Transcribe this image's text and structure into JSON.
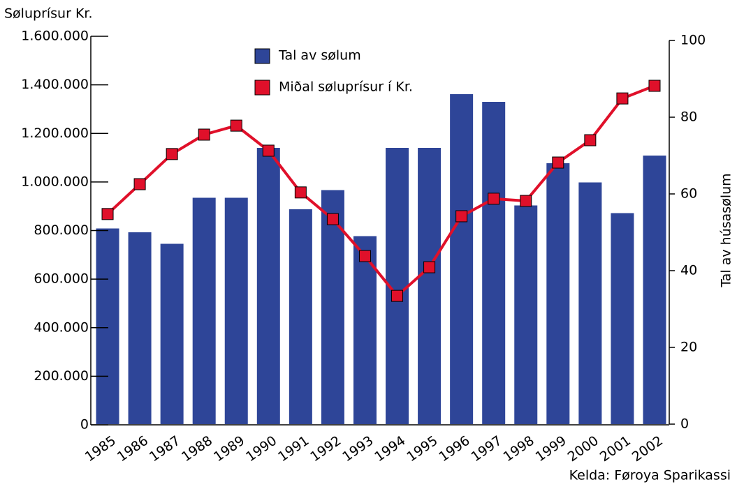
{
  "chart_data": {
    "type": "bar",
    "y_label": "Søluprísur Kr.",
    "y2_label": "Tal av húsasølum",
    "source": "Kelda: Føroya Sparikassi",
    "categories": [
      "1985",
      "1986",
      "1987",
      "1988",
      "1989",
      "1990",
      "1991",
      "1992",
      "1993",
      "1994",
      "1995",
      "1996",
      "1997",
      "1998",
      "1999",
      "2000",
      "2001",
      "2002"
    ],
    "series": [
      {
        "name": "Tal av sølum",
        "type": "bar",
        "axis": "y2",
        "color": "#2e4598",
        "values": [
          51,
          50,
          47,
          59,
          59,
          72,
          56,
          61,
          49,
          72,
          72,
          86,
          84,
          57,
          68,
          63,
          55,
          70
        ]
      },
      {
        "name": "Miðal søluprísur í Kr.",
        "type": "line",
        "axis": "y",
        "color": "#e0102a",
        "values": [
          868000,
          991000,
          1115000,
          1195000,
          1232000,
          1129000,
          957000,
          847000,
          695000,
          531000,
          649000,
          859000,
          931000,
          922000,
          1080000,
          1172000,
          1344000,
          1396000
        ]
      }
    ],
    "ylim": [
      0,
      1600000
    ],
    "yticks": [
      0,
      {
        "value": 200000,
        "label": "200.000"
      },
      {
        "value": 400000,
        "label": "400.000"
      },
      {
        "value": 600000,
        "label": "600.000"
      },
      {
        "value": 800000,
        "label": "800.000"
      },
      {
        "value": 1000000,
        "label": "1.000.000"
      },
      {
        "value": 1200000,
        "label": "1.200.000"
      },
      {
        "value": 1400000,
        "label": "1.400.000"
      },
      {
        "value": 1600000,
        "label": "1.600.000"
      }
    ],
    "y2lim": [
      0,
      100
    ],
    "y2ticks": [
      0,
      20,
      40,
      60,
      80,
      100
    ]
  }
}
